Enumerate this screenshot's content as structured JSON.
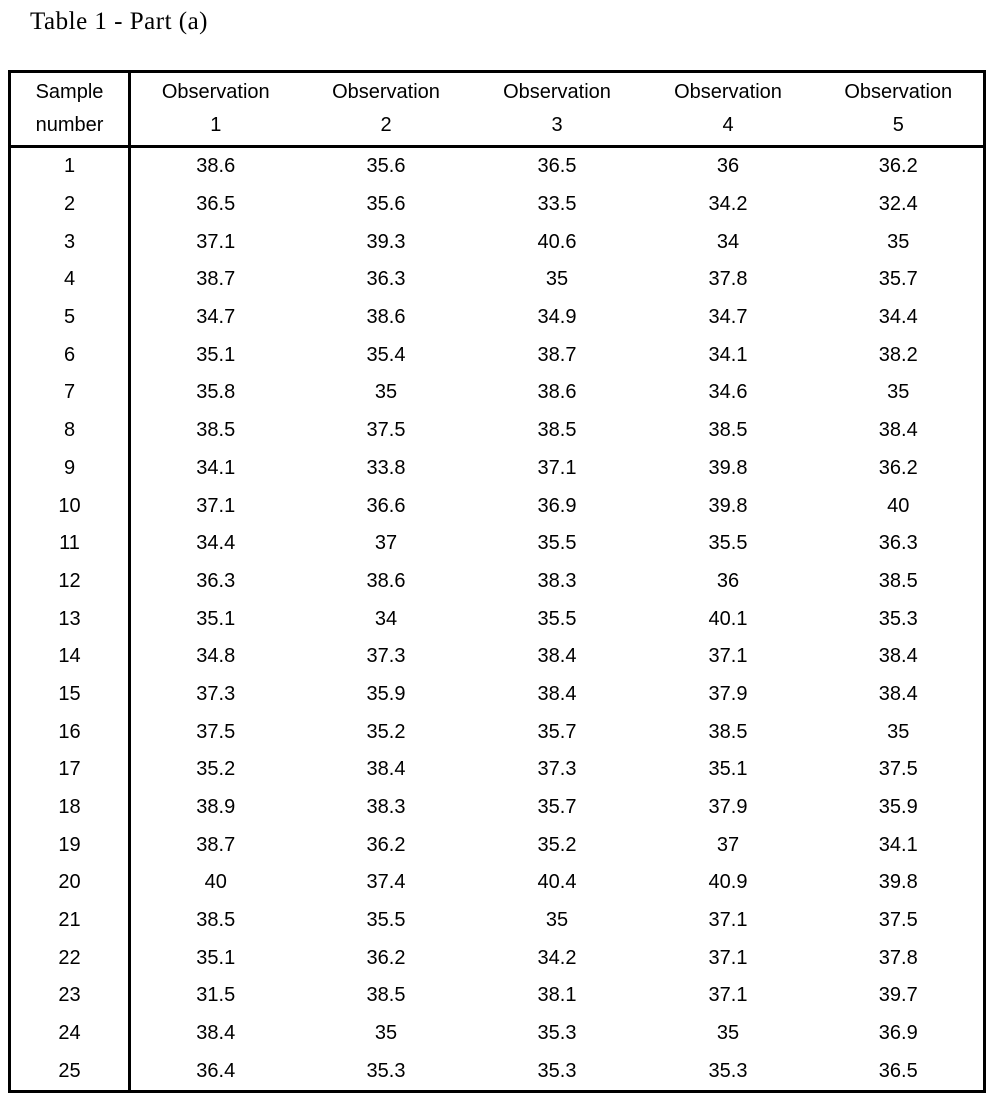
{
  "page": {
    "title": "Table 1 - Part (a)"
  },
  "colors": {
    "background": "#ffffff",
    "text": "#000000",
    "border": "#000000"
  },
  "table": {
    "columns": [
      {
        "label_line1": "Sample",
        "label_line2": "number"
      },
      {
        "label_line1": "Observation",
        "label_line2": "1"
      },
      {
        "label_line1": "Observation",
        "label_line2": "2"
      },
      {
        "label_line1": "Observation",
        "label_line2": "3"
      },
      {
        "label_line1": "Observation",
        "label_line2": "4"
      },
      {
        "label_line1": "Observation",
        "label_line2": "5"
      }
    ],
    "rows": [
      {
        "sample": "1",
        "observations": [
          "38.6",
          "35.6",
          "36.5",
          "36",
          "36.2"
        ]
      },
      {
        "sample": "2",
        "observations": [
          "36.5",
          "35.6",
          "33.5",
          "34.2",
          "32.4"
        ]
      },
      {
        "sample": "3",
        "observations": [
          "37.1",
          "39.3",
          "40.6",
          "34",
          "35"
        ]
      },
      {
        "sample": "4",
        "observations": [
          "38.7",
          "36.3",
          "35",
          "37.8",
          "35.7"
        ]
      },
      {
        "sample": "5",
        "observations": [
          "34.7",
          "38.6",
          "34.9",
          "34.7",
          "34.4"
        ]
      },
      {
        "sample": "6",
        "observations": [
          "35.1",
          "35.4",
          "38.7",
          "34.1",
          "38.2"
        ]
      },
      {
        "sample": "7",
        "observations": [
          "35.8",
          "35",
          "38.6",
          "34.6",
          "35"
        ]
      },
      {
        "sample": "8",
        "observations": [
          "38.5",
          "37.5",
          "38.5",
          "38.5",
          "38.4"
        ]
      },
      {
        "sample": "9",
        "observations": [
          "34.1",
          "33.8",
          "37.1",
          "39.8",
          "36.2"
        ]
      },
      {
        "sample": "10",
        "observations": [
          "37.1",
          "36.6",
          "36.9",
          "39.8",
          "40"
        ]
      },
      {
        "sample": "11",
        "observations": [
          "34.4",
          "37",
          "35.5",
          "35.5",
          "36.3"
        ]
      },
      {
        "sample": "12",
        "observations": [
          "36.3",
          "38.6",
          "38.3",
          "36",
          "38.5"
        ]
      },
      {
        "sample": "13",
        "observations": [
          "35.1",
          "34",
          "35.5",
          "40.1",
          "35.3"
        ]
      },
      {
        "sample": "14",
        "observations": [
          "34.8",
          "37.3",
          "38.4",
          "37.1",
          "38.4"
        ]
      },
      {
        "sample": "15",
        "observations": [
          "37.3",
          "35.9",
          "38.4",
          "37.9",
          "38.4"
        ]
      },
      {
        "sample": "16",
        "observations": [
          "37.5",
          "35.2",
          "35.7",
          "38.5",
          "35"
        ]
      },
      {
        "sample": "17",
        "observations": [
          "35.2",
          "38.4",
          "37.3",
          "35.1",
          "37.5"
        ]
      },
      {
        "sample": "18",
        "observations": [
          "38.9",
          "38.3",
          "35.7",
          "37.9",
          "35.9"
        ]
      },
      {
        "sample": "19",
        "observations": [
          "38.7",
          "36.2",
          "35.2",
          "37",
          "34.1"
        ]
      },
      {
        "sample": "20",
        "observations": [
          "40",
          "37.4",
          "40.4",
          "40.9",
          "39.8"
        ]
      },
      {
        "sample": "21",
        "observations": [
          "38.5",
          "35.5",
          "35",
          "37.1",
          "37.5"
        ]
      },
      {
        "sample": "22",
        "observations": [
          "35.1",
          "36.2",
          "34.2",
          "37.1",
          "37.8"
        ]
      },
      {
        "sample": "23",
        "observations": [
          "31.5",
          "38.5",
          "38.1",
          "37.1",
          "39.7"
        ]
      },
      {
        "sample": "24",
        "observations": [
          "38.4",
          "35",
          "35.3",
          "35",
          "36.9"
        ]
      },
      {
        "sample": "25",
        "observations": [
          "36.4",
          "35.3",
          "35.3",
          "35.3",
          "36.5"
        ]
      }
    ]
  }
}
